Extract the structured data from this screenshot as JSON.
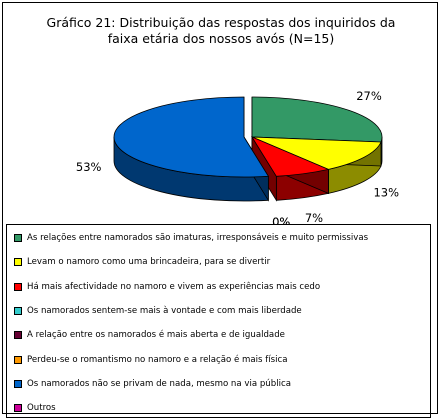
{
  "chart_data": {
    "type": "pie",
    "title": "Gráfico 21: Distribuição das respostas dos inquiridos da faixa etária dos nossos avós (N=15)",
    "title_lines": [
      "Gráfico 21: Distribuição das respostas dos inquiridos da",
      "faixa etária dos nossos avós (N=15)"
    ],
    "legend_position": "bottom",
    "slices": [
      {
        "label": "As relações entre namorados são imaturas, irresponsáveis e muito permissivas",
        "value": 27,
        "display": "27%",
        "color": "#339966"
      },
      {
        "label": "Levam o namoro como uma brincadeira, para se divertir",
        "value": 13,
        "display": "13%",
        "color": "#ffff00"
      },
      {
        "label": "Há mais afectividade no namoro e vivem as experiências mais cedo",
        "value": 7,
        "display": "7%",
        "color": "#ff0000"
      },
      {
        "label": "Os namorados sentem-se mais à vontade e com mais liberdade",
        "value": 0,
        "display": "0%",
        "color": "#33cccc"
      },
      {
        "label": "A relação entre os namorados é mais aberta e de igualdade",
        "value": 0,
        "display": "",
        "color": "#660033"
      },
      {
        "label": "Perdeu-se o romantismo no namoro e a relação é mais física",
        "value": 0,
        "display": "0%",
        "color": "#ff9900"
      },
      {
        "label": "Os namorados não se privam de nada, mesmo na via pública",
        "value": 53,
        "display": "53%",
        "color": "#0066cc"
      },
      {
        "label": "Outros",
        "value": 0,
        "display": "",
        "color": "#cc0099"
      }
    ]
  }
}
